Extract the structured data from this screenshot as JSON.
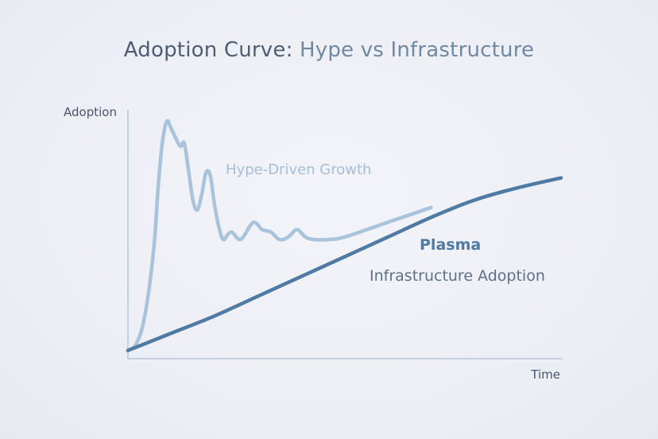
{
  "chart_data": {
    "type": "line",
    "title": {
      "main": "Adoption Curve",
      "separator": ": ",
      "sub": "Hype vs Infrastructure"
    },
    "xlabel": "Time",
    "ylabel": "Adoption",
    "grid": false,
    "xlim": [
      0,
      100
    ],
    "ylim": [
      0,
      100
    ],
    "series": [
      {
        "name": "Hype-Driven Growth",
        "color": "#a9c3da",
        "points": [
          [
            0,
            3
          ],
          [
            2,
            6
          ],
          [
            4,
            18
          ],
          [
            6,
            45
          ],
          [
            7,
            70
          ],
          [
            8,
            88
          ],
          [
            9,
            96
          ],
          [
            10,
            93
          ],
          [
            12,
            86
          ],
          [
            13,
            87
          ],
          [
            14,
            76
          ],
          [
            15,
            64
          ],
          [
            16,
            60
          ],
          [
            17,
            66
          ],
          [
            18,
            75
          ],
          [
            19,
            74
          ],
          [
            20,
            62
          ],
          [
            21,
            53
          ],
          [
            22,
            48
          ],
          [
            23,
            50
          ],
          [
            24,
            51
          ],
          [
            25,
            49
          ],
          [
            26,
            48
          ],
          [
            27,
            50
          ],
          [
            28,
            53
          ],
          [
            29,
            55
          ],
          [
            30,
            54
          ],
          [
            31,
            52
          ],
          [
            33,
            51
          ],
          [
            35,
            48
          ],
          [
            37,
            49
          ],
          [
            39,
            52
          ],
          [
            41,
            49
          ],
          [
            43,
            48
          ],
          [
            46,
            48
          ],
          [
            50,
            49
          ],
          [
            60,
            55
          ],
          [
            65,
            58
          ],
          [
            70,
            61
          ]
        ]
      },
      {
        "name": "Infrastructure Adoption",
        "label": "Plasma",
        "sublabel": "Infrastructure Adoption",
        "color": "#4e7aa3",
        "points": [
          [
            0,
            3
          ],
          [
            10,
            10
          ],
          [
            20,
            17
          ],
          [
            30,
            25
          ],
          [
            40,
            33
          ],
          [
            50,
            41
          ],
          [
            60,
            49
          ],
          [
            70,
            57
          ],
          [
            80,
            64
          ],
          [
            90,
            69
          ],
          [
            100,
            73
          ]
        ]
      }
    ]
  },
  "colors": {
    "title_main": "#4f5d72",
    "title_sub": "#7188a3",
    "axis": "#c6cfdd",
    "axis_text": "#4a5466"
  }
}
